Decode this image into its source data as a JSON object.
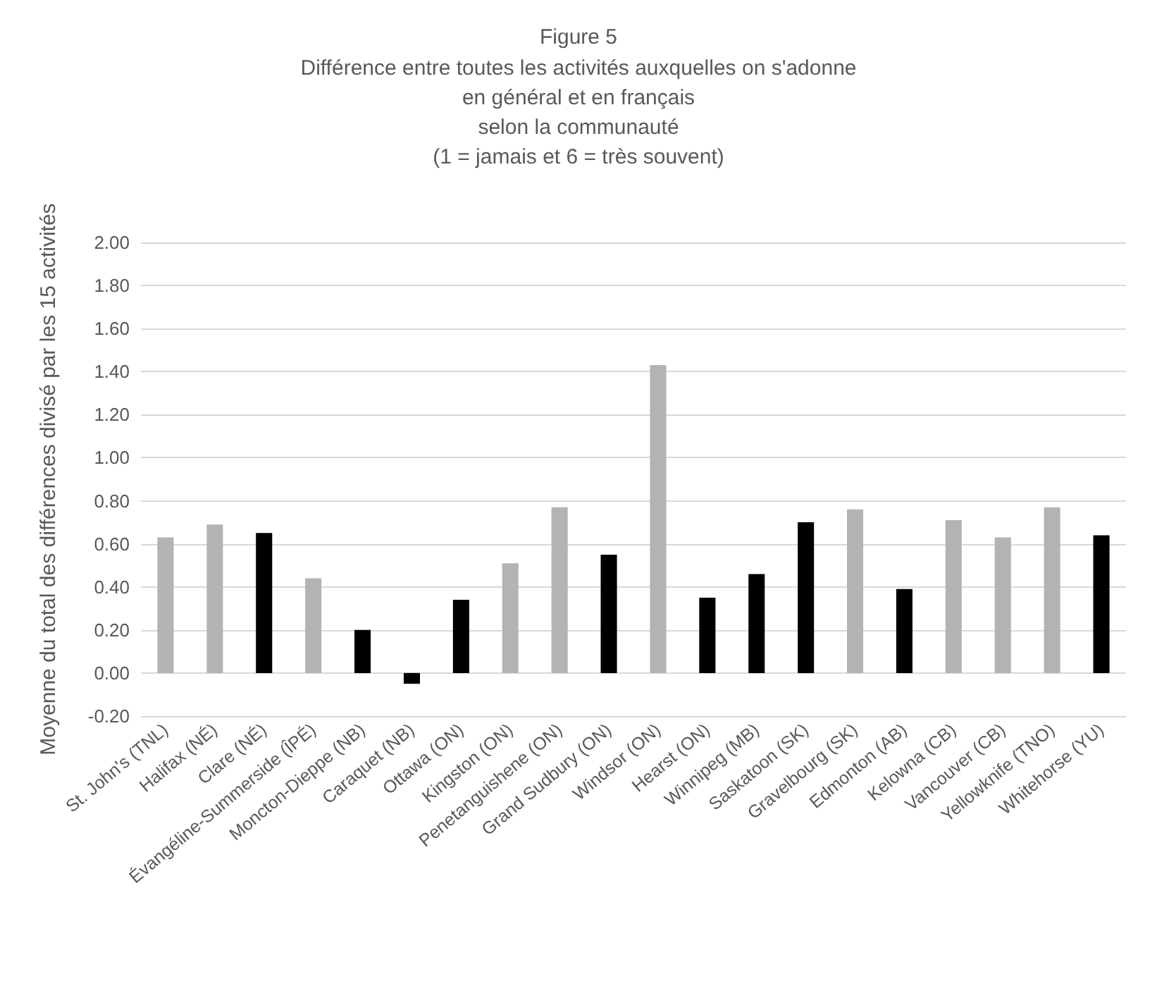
{
  "chart_data": {
    "type": "bar",
    "title": "Figure 5",
    "subtitle": "Différence entre toutes les activités auxquelles on s'adonne\nen général et en français\nselon la communauté\n(1 = jamais et 6 = très souvent)",
    "ylabel": "Moyenne du total des différences divisé par les 15 activités",
    "categories": [
      "St. John's (TNL)",
      "Halifax (NÉ)",
      "Clare (NÉ)",
      "Évangéline-Summerside (ÎPÉ)",
      "Moncton-Dieppe (NB)",
      "Caraquet (NB)",
      "Ottawa (ON)",
      "Kingston (ON)",
      "Penetanguishene (ON)",
      "Grand Sudbury (ON)",
      "Windsor (ON)",
      "Hearst (ON)",
      "Winnipeg (MB)",
      "Saskatoon (SK)",
      "Gravelbourg (SK)",
      "Edmonton (AB)",
      "Kelowna (CB)",
      "Vancouver (CB)",
      "Yellowknife (TNO)",
      "Whitehorse (YU)"
    ],
    "values": [
      0.63,
      0.69,
      0.65,
      0.44,
      0.2,
      -0.05,
      0.34,
      0.51,
      0.77,
      0.55,
      1.43,
      0.35,
      0.46,
      0.7,
      0.76,
      0.39,
      0.71,
      0.63,
      0.77,
      0.64
    ],
    "colors": [
      "#b3b3b3",
      "#b3b3b3",
      "#000000",
      "#b3b3b3",
      "#000000",
      "#000000",
      "#000000",
      "#b3b3b3",
      "#b3b3b3",
      "#000000",
      "#b3b3b3",
      "#000000",
      "#000000",
      "#000000",
      "#b3b3b3",
      "#000000",
      "#b3b3b3",
      "#b3b3b3",
      "#b3b3b3",
      "#000000"
    ],
    "ylim": [
      -0.2,
      2.0
    ],
    "yticks": [
      {
        "value": -0.2,
        "label": "-0.20"
      },
      {
        "value": 0,
        "label": "0.00"
      },
      {
        "value": 0.2,
        "label": "0.20"
      },
      {
        "value": 0.4,
        "label": "0.40"
      },
      {
        "value": 0.6,
        "label": "0.60"
      },
      {
        "value": 0.8,
        "label": "0.80"
      },
      {
        "value": 1.0,
        "label": "1.00"
      },
      {
        "value": 1.2,
        "label": "1.20"
      },
      {
        "value": 1.4,
        "label": "1.40"
      },
      {
        "value": 1.6,
        "label": "1.60"
      },
      {
        "value": 1.8,
        "label": "1.80"
      },
      {
        "value": 2.0,
        "label": "2.00"
      }
    ],
    "grid": "y"
  }
}
